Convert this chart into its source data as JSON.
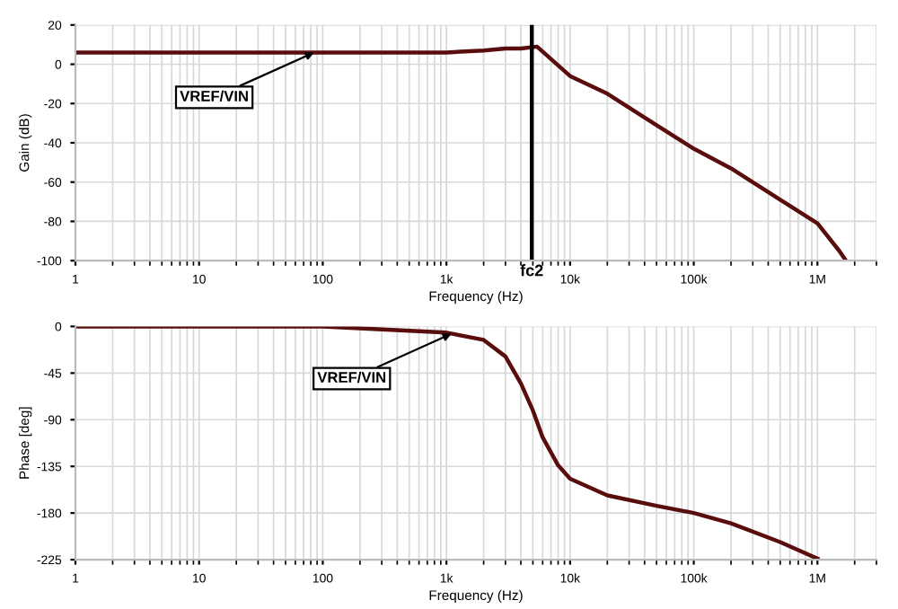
{
  "chart_data": [
    {
      "type": "line",
      "ylabel": "Gain (dB)",
      "xlabel": "Frequency (Hz)",
      "log": "x",
      "grid": true,
      "marker": "none",
      "line_style": "solid",
      "xlim": [
        1,
        3000000
      ],
      "xticks": [
        {
          "value": 1,
          "label": "1"
        },
        {
          "value": 10,
          "label": "10"
        },
        {
          "value": 100,
          "label": "100"
        },
        {
          "value": 1000,
          "label": "1k"
        },
        {
          "value": 10000,
          "label": "10k"
        },
        {
          "value": 100000,
          "label": "100k"
        },
        {
          "value": 1000000,
          "label": "1M"
        }
      ],
      "ylim": [
        -100,
        20
      ],
      "yticks": [
        -100,
        -80,
        -60,
        -40,
        -20,
        0,
        20
      ],
      "ref_lines": [
        {
          "axis": "x",
          "value": 4900,
          "label": "fc2",
          "color": "#000000"
        }
      ],
      "annotations": [
        {
          "text": "VREF/VIN",
          "x": 85,
          "y": 6
        }
      ],
      "series": [
        {
          "color": "#5a0d0d",
          "x": [
            1,
            10,
            100,
            1000,
            2000,
            3000,
            4000,
            5400,
            10000,
            20000,
            50000,
            100000,
            200000,
            500000,
            1000000,
            1500000,
            1700000
          ],
          "values": [
            6,
            6,
            6,
            6,
            7,
            8,
            8,
            9,
            -6,
            -15,
            -31,
            -43,
            -53,
            -69,
            -81,
            -95,
            -100
          ]
        }
      ]
    },
    {
      "type": "line",
      "ylabel": "Phase [deg]",
      "xlabel": "Frequency (Hz)",
      "log": "x",
      "grid": true,
      "marker": "none",
      "line_style": "solid",
      "xlim": [
        1,
        3000000
      ],
      "xticks": [
        {
          "value": 1,
          "label": "1"
        },
        {
          "value": 10,
          "label": "10"
        },
        {
          "value": 100,
          "label": "100"
        },
        {
          "value": 1000,
          "label": "1k"
        },
        {
          "value": 10000,
          "label": "10k"
        },
        {
          "value": 100000,
          "label": "100k"
        },
        {
          "value": 1000000,
          "label": "1M"
        }
      ],
      "ylim": [
        -225,
        0
      ],
      "yticks": [
        -225,
        -180,
        -135,
        -90,
        -45,
        0
      ],
      "annotations": [
        {
          "text": "VREF/VIN",
          "x": 1100,
          "y": -7
        }
      ],
      "series": [
        {
          "color": "#5a0d0d",
          "x": [
            1,
            10,
            100,
            1000,
            2000,
            3000,
            4000,
            5000,
            6000,
            8000,
            10000,
            20000,
            50000,
            100000,
            200000,
            500000,
            1000000
          ],
          "values": [
            0,
            0,
            0,
            -6,
            -13,
            -29,
            -55,
            -81,
            -107,
            -134,
            -147,
            -163,
            -173,
            -180,
            -190,
            -208,
            -224
          ]
        }
      ]
    }
  ]
}
